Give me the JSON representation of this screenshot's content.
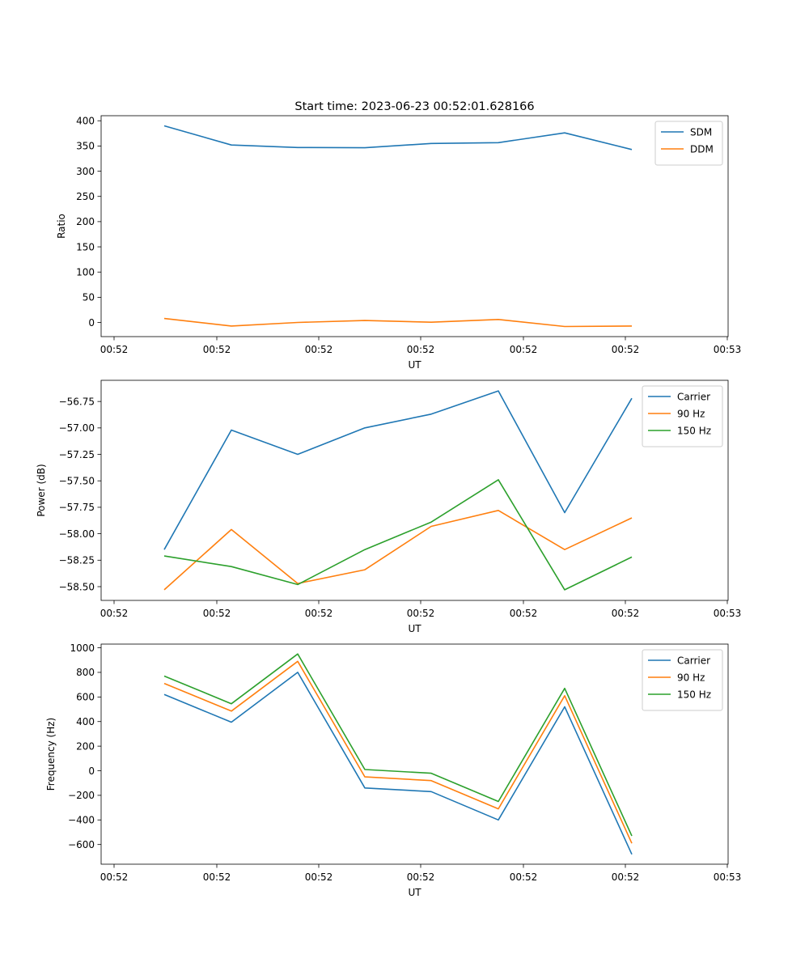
{
  "chart_data": [
    {
      "type": "line",
      "title": "Start time: 2023-06-23 00:52:01.628166",
      "xlabel": "UT",
      "ylabel": "Ratio",
      "x_tick_labels": [
        "00:52",
        "00:52",
        "00:52",
        "00:52",
        "00:52",
        "00:52",
        "00:52",
        "00:53"
      ],
      "y_ticks": [
        0,
        50,
        100,
        150,
        200,
        250,
        300,
        350,
        400
      ],
      "y_tick_labels": [
        "0",
        "50",
        "100",
        "150",
        "200",
        "250",
        "300",
        "350",
        "400"
      ],
      "ylim": [
        -28,
        410
      ],
      "grid": false,
      "legend": "top-right",
      "series": [
        {
          "name": "SDM",
          "color": "#1f77b4",
          "values": [
            390,
            352,
            347,
            346.5,
            355,
            356.5,
            376,
            343
          ]
        },
        {
          "name": "DDM",
          "color": "#ff7f0e",
          "values": [
            8,
            -7,
            0,
            4,
            0.5,
            6,
            -8,
            -7
          ]
        }
      ]
    },
    {
      "type": "line",
      "xlabel": "UT",
      "ylabel": "Power (dB)",
      "x_tick_labels": [
        "00:52",
        "00:52",
        "00:52",
        "00:52",
        "00:52",
        "00:52",
        "00:52",
        "00:53"
      ],
      "y_ticks": [
        -58.5,
        -58.25,
        -58.0,
        -57.75,
        -57.5,
        -57.25,
        -57.0,
        -56.75
      ],
      "y_tick_labels": [
        "−58.50",
        "−58.25",
        "−58.00",
        "−57.75",
        "−57.50",
        "−57.25",
        "−57.00",
        "−56.75"
      ],
      "ylim": [
        -58.63,
        -56.55
      ],
      "grid": false,
      "legend": "top-right",
      "series": [
        {
          "name": "Carrier",
          "color": "#1f77b4",
          "values": [
            -58.15,
            -57.02,
            -57.25,
            -57.0,
            -56.87,
            -56.65,
            -57.8,
            -56.72
          ]
        },
        {
          "name": "90 Hz",
          "color": "#ff7f0e",
          "values": [
            -58.53,
            -57.96,
            -58.47,
            -58.34,
            -57.93,
            -57.78,
            -58.15,
            -57.85
          ]
        },
        {
          "name": "150 Hz",
          "color": "#2ca02c",
          "values": [
            -58.21,
            -58.31,
            -58.48,
            -58.15,
            -57.89,
            -57.49,
            -58.53,
            -58.22
          ]
        }
      ]
    },
    {
      "type": "line",
      "xlabel": "UT",
      "ylabel": "Frequency (Hz)",
      "x_tick_labels": [
        "00:52",
        "00:52",
        "00:52",
        "00:52",
        "00:52",
        "00:52",
        "00:52",
        "00:53"
      ],
      "y_ticks": [
        -600,
        -400,
        -200,
        0,
        200,
        400,
        600,
        800,
        1000
      ],
      "y_tick_labels": [
        "−600",
        "−400",
        "−200",
        "0",
        "200",
        "400",
        "600",
        "800",
        "1000"
      ],
      "ylim": [
        -760,
        1030
      ],
      "grid": false,
      "legend": "top-right",
      "series": [
        {
          "name": "Carrier",
          "color": "#1f77b4",
          "values": [
            620,
            395,
            800,
            -140,
            -170,
            -400,
            520,
            -680
          ]
        },
        {
          "name": "90 Hz",
          "color": "#ff7f0e",
          "values": [
            710,
            485,
            890,
            -50,
            -80,
            -310,
            610,
            -590
          ]
        },
        {
          "name": "150 Hz",
          "color": "#2ca02c",
          "values": [
            770,
            545,
            950,
            10,
            -20,
            -250,
            670,
            -530
          ]
        }
      ]
    }
  ]
}
